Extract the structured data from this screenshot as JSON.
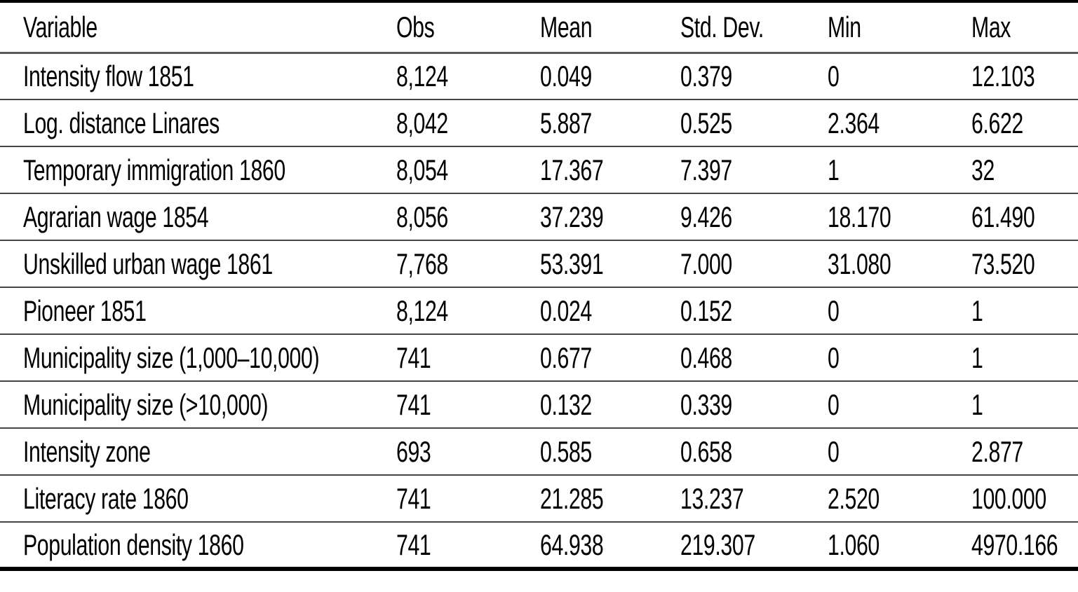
{
  "page": {
    "background_color": "#ffffff",
    "text_color": "#000000",
    "outer_rule_color": "#000000",
    "inner_rule_color": "#454545"
  },
  "table": {
    "columns": {
      "variable": "Variable",
      "obs": "Obs",
      "mean": "Mean",
      "std": "Std. Dev.",
      "min": "Min",
      "max": "Max"
    },
    "rows": [
      {
        "variable": "Intensity flow 1851",
        "obs": "8,124",
        "mean": "0.049",
        "std": "0.379",
        "min": "0",
        "max": "12.103"
      },
      {
        "variable": "Log. distance Linares",
        "obs": "8,042",
        "mean": "5.887",
        "std": "0.525",
        "min": "2.364",
        "max": "6.622"
      },
      {
        "variable": "Temporary immigration 1860",
        "obs": "8,054",
        "mean": "17.367",
        "std": "7.397",
        "min": "1",
        "max": "32"
      },
      {
        "variable": "Agrarian wage 1854",
        "obs": "8,056",
        "mean": "37.239",
        "std": "9.426",
        "min": "18.170",
        "max": "61.490"
      },
      {
        "variable": "Unskilled urban wage 1861",
        "obs": "7,768",
        "mean": "53.391",
        "std": "7.000",
        "min": "31.080",
        "max": "73.520"
      },
      {
        "variable": "Pioneer 1851",
        "obs": "8,124",
        "mean": "0.024",
        "std": "0.152",
        "min": "0",
        "max": "1"
      },
      {
        "variable": "Municipality size (1,000–10,000)",
        "obs": "741",
        "mean": "0.677",
        "std": "0.468",
        "min": "0",
        "max": "1"
      },
      {
        "variable": "Municipality size (>10,000)",
        "obs": "741",
        "mean": "0.132",
        "std": "0.339",
        "min": "0",
        "max": "1"
      },
      {
        "variable": "Intensity zone",
        "obs": "693",
        "mean": "0.585",
        "std": "0.658",
        "min": "0",
        "max": "2.877"
      },
      {
        "variable": "Literacy rate 1860",
        "obs": "741",
        "mean": "21.285",
        "std": "13.237",
        "min": "2.520",
        "max": "100.000"
      },
      {
        "variable": "Population density 1860",
        "obs": "741",
        "mean": "64.938",
        "std": "219.307",
        "min": "1.060",
        "max": "4970.166"
      }
    ]
  }
}
